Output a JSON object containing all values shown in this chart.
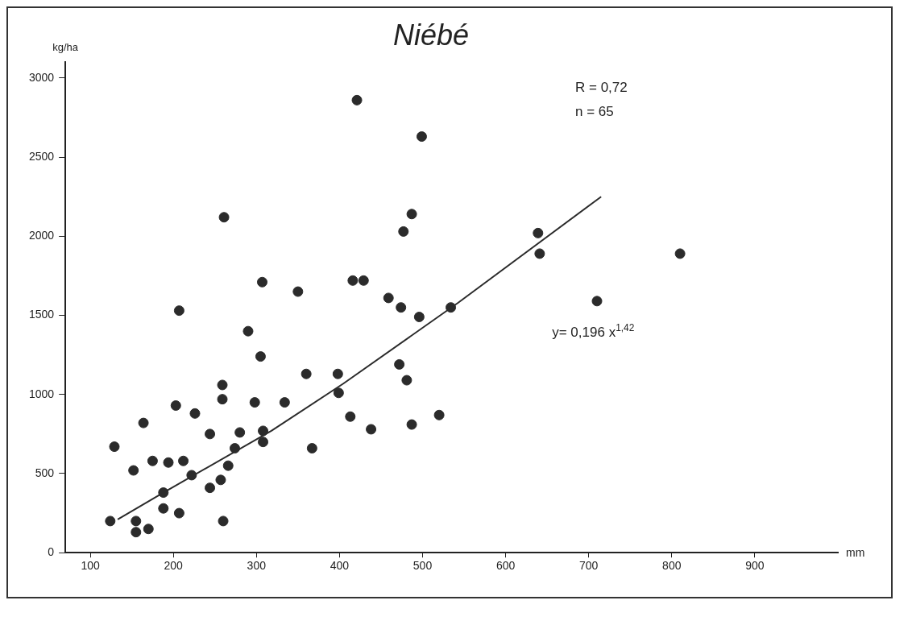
{
  "chart_data": {
    "type": "scatter",
    "title": "Niébé",
    "xlabel": "mm",
    "ylabel": "kg/ha",
    "annotations": [
      "R = 0,72",
      "n = 65",
      "y= 0,196 x$^{1,42}$"
    ],
    "xlim": [
      70,
      1000
    ],
    "xticks": [
      100,
      200,
      300,
      400,
      500,
      600,
      700,
      800,
      900
    ],
    "ylim": [
      0,
      3100
    ],
    "yticks": [
      0,
      500,
      1000,
      1500,
      2000,
      2500,
      3000
    ],
    "grid": false,
    "legend": false,
    "marker": "circle",
    "series": [
      {
        "type": "scatter",
        "color": "#2b2b2b",
        "x": [
          307,
          207,
          290,
          305,
          259,
          259,
          203,
          226,
          298,
          334,
          164,
          129,
          244,
          280,
          308,
          308,
          274,
          175,
          194,
          212,
          152,
          266,
          222,
          257,
          244,
          188,
          188,
          207,
          124,
          155,
          260,
          155,
          170,
          421,
          499,
          261,
          487,
          477,
          350,
          416,
          429,
          459,
          474,
          496,
          534,
          360,
          398,
          399,
          472,
          481,
          413,
          438,
          487,
          520,
          367,
          639,
          641,
          810,
          710
        ],
        "values": [
          1710,
          1530,
          1400,
          1240,
          1060,
          970,
          930,
          880,
          950,
          950,
          820,
          670,
          750,
          760,
          770,
          700,
          660,
          580,
          570,
          580,
          520,
          550,
          490,
          460,
          410,
          380,
          280,
          250,
          200,
          200,
          200,
          130,
          150,
          2860,
          2630,
          2120,
          2140,
          2030,
          1650,
          1720,
          1720,
          1610,
          1550,
          1490,
          1550,
          1130,
          1130,
          1010,
          1190,
          1090,
          860,
          780,
          810,
          870,
          660,
          2020,
          1890,
          1890,
          1590
        ]
      },
      {
        "type": "line",
        "color": "#2b2b2b",
        "line_style": "solid",
        "marker": "none",
        "x": [
          133,
          188,
          318,
          405,
          543,
          715
        ],
        "values": [
          210,
          380,
          770,
          1070,
          1580,
          2250
        ]
      }
    ]
  }
}
